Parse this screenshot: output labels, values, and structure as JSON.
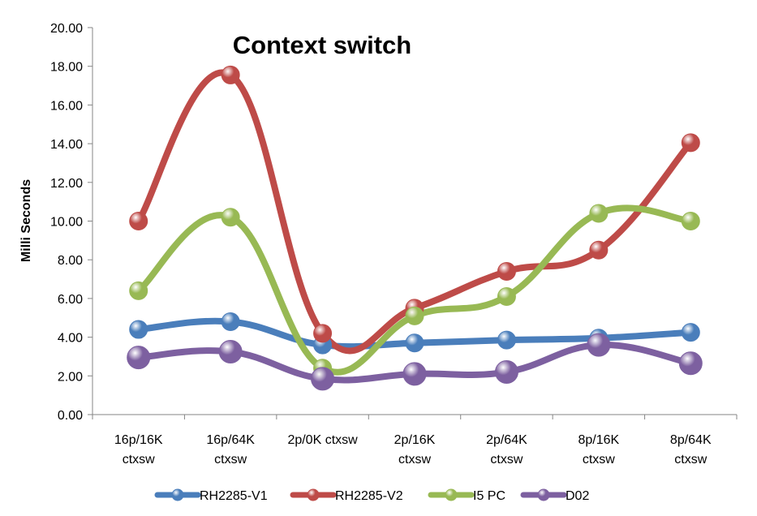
{
  "chart_data": {
    "type": "line",
    "title": "Context switch",
    "xlabel": "",
    "ylabel": "Milli Seconds",
    "ylim": [
      0,
      20
    ],
    "ytick_labels": [
      "0.00",
      "2.00",
      "4.00",
      "6.00",
      "8.00",
      "10.00",
      "12.00",
      "14.00",
      "16.00",
      "18.00",
      "20.00"
    ],
    "categories": [
      [
        "16p/16K",
        "ctxsw"
      ],
      [
        "16p/64K",
        "ctxsw"
      ],
      [
        "2p/0K ctxsw"
      ],
      [
        "2p/16K",
        "ctxsw"
      ],
      [
        "2p/64K",
        "ctxsw"
      ],
      [
        "8p/16K",
        "ctxsw"
      ],
      [
        "8p/64K",
        "ctxsw"
      ]
    ],
    "grid": false,
    "legend_position": "bottom",
    "smooth": true,
    "series": [
      {
        "name": "RH2285-V1",
        "color": "#4a7ebb",
        "values": [
          4.4,
          4.8,
          3.6,
          3.7,
          3.85,
          3.95,
          4.25
        ]
      },
      {
        "name": "RH2285-V2",
        "color": "#be4b48",
        "values": [
          10.0,
          17.55,
          4.2,
          5.5,
          7.4,
          8.5,
          14.05
        ]
      },
      {
        "name": "I5 PC",
        "color": "#98b954",
        "values": [
          6.4,
          10.2,
          2.4,
          5.1,
          6.1,
          10.4,
          10.0
        ]
      },
      {
        "name": "D02",
        "color": "#7d60a0",
        "values": [
          2.95,
          3.25,
          1.85,
          2.1,
          2.2,
          3.6,
          2.65
        ]
      }
    ]
  }
}
